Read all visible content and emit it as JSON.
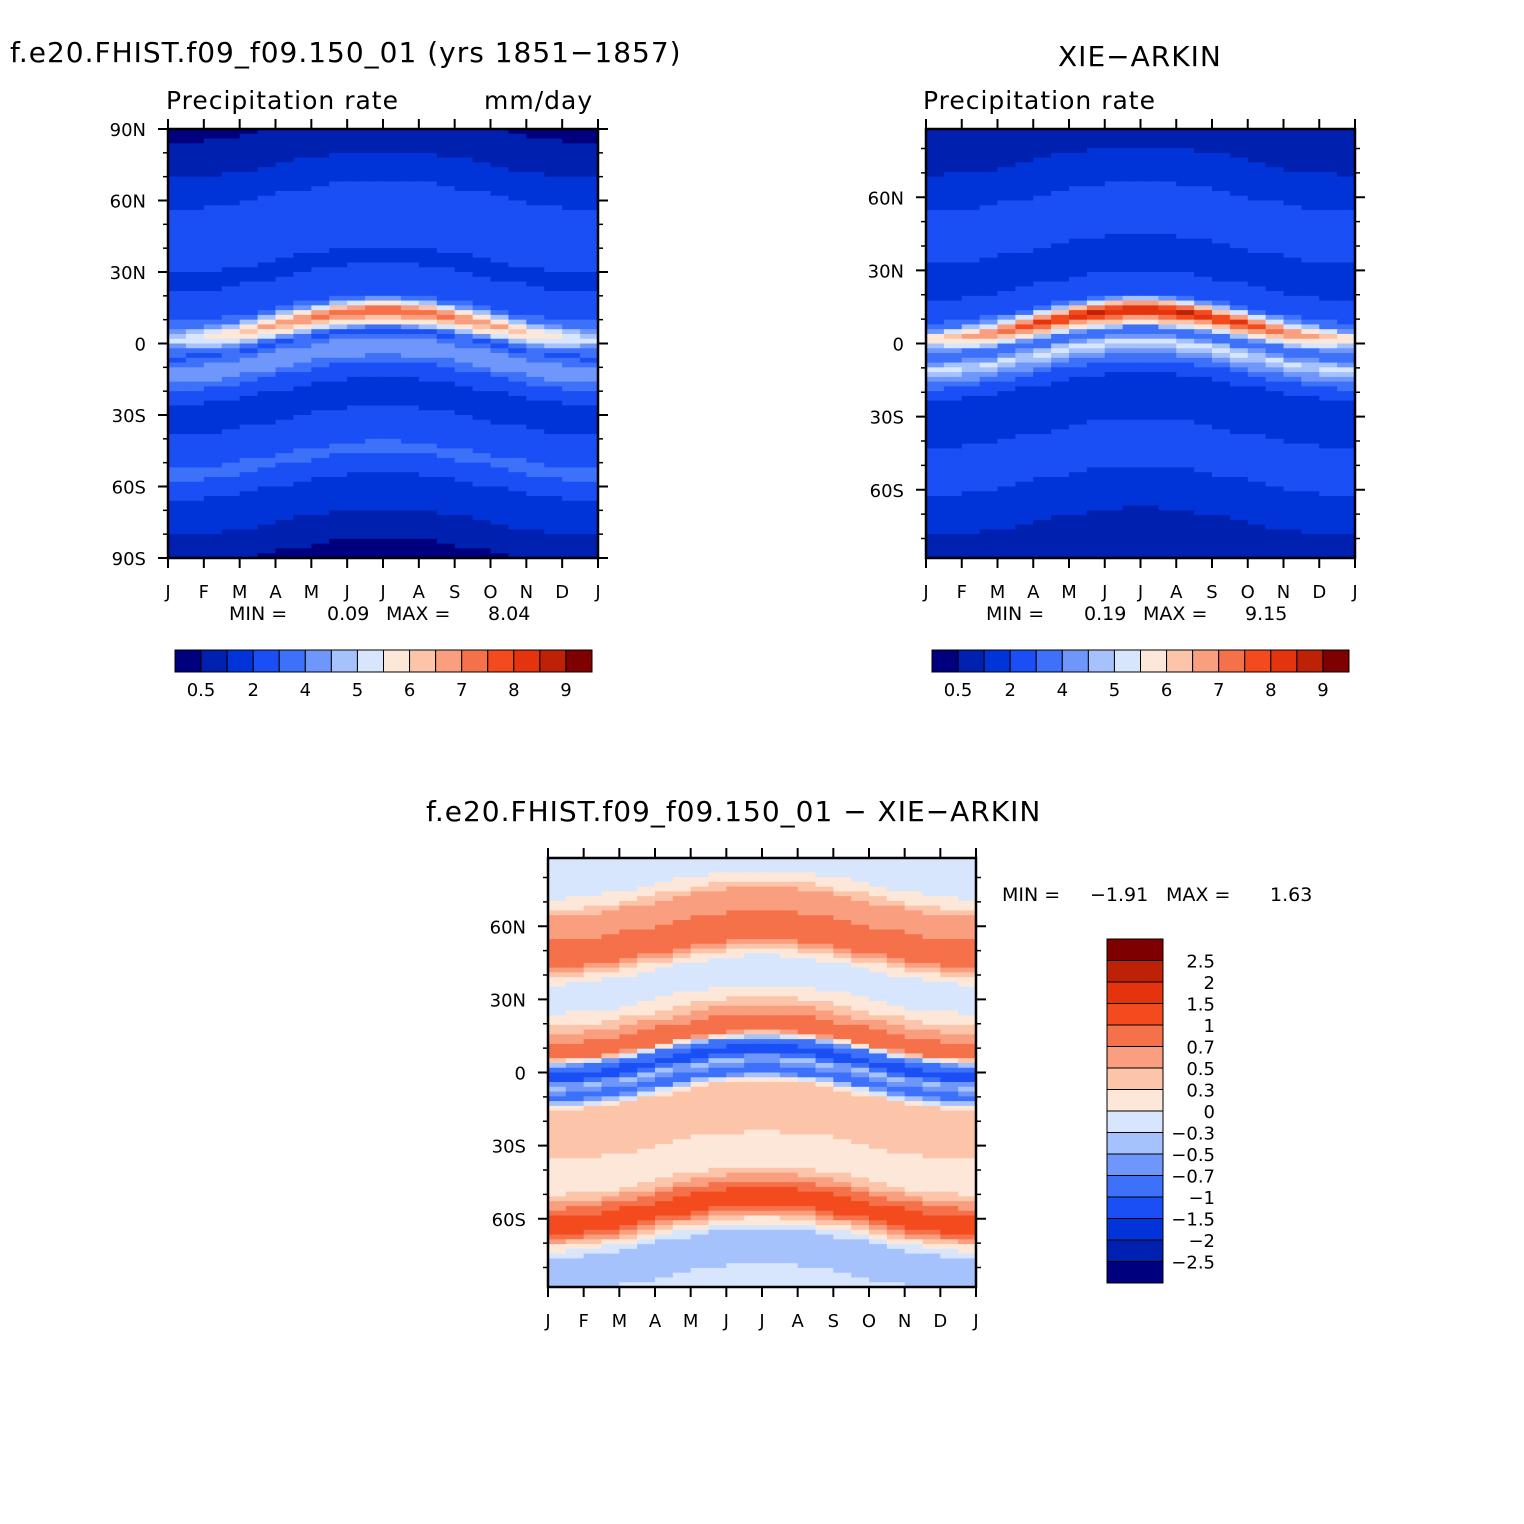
{
  "panels": [
    {
      "title": "f.e20.FHIST.f09_f09.150_01 (yrs 1851−1857)",
      "left_label": "Precipitation rate",
      "right_label": "mm/day",
      "min_label": "MIN =",
      "min_value": "0.09",
      "max_label": "MAX =",
      "max_value": "8.04"
    },
    {
      "title": "XIE−ARKIN",
      "left_label": "Precipitation rate",
      "right_label": "",
      "min_label": "MIN =",
      "min_value": "0.19",
      "max_label": "MAX =",
      "max_value": "9.15"
    },
    {
      "title": "f.e20.FHIST.f09_f09.150_01 − XIE−ARKIN",
      "left_label": "",
      "right_label": "",
      "min_label": "MIN =",
      "min_value": "−1.91",
      "max_label": "MAX =",
      "max_value": "1.63"
    }
  ],
  "colors": {
    "precip_scale": [
      "#00007F",
      "#0020B0",
      "#0034D8",
      "#1A4FF5",
      "#3D71FA",
      "#6F97FB",
      "#A6C2FC",
      "#D7E6FD",
      "#FDE7D8",
      "#FCC5AA",
      "#F99E7E",
      "#F5714A",
      "#F34A1E",
      "#E4340E",
      "#BD2207",
      "#7F0000"
    ],
    "diff_scale": [
      "#00007F",
      "#0020B0",
      "#0034D8",
      "#1A4FF5",
      "#3D71FA",
      "#6F97FB",
      "#A6C2FC",
      "#D7E6FD",
      "#FDE7D8",
      "#FCC5AA",
      "#F99E7E",
      "#F5714A",
      "#F34A1E",
      "#E4340E",
      "#BD2207",
      "#7F0000"
    ]
  },
  "chart_data": [
    {
      "type": "heatmap",
      "title": "f.e20.FHIST.f09_f09.150_01 (yrs 1851−1857)",
      "subtitle": "Precipitation rate",
      "units": "mm/day",
      "x_ticks": [
        "J",
        "F",
        "M",
        "A",
        "M",
        "J",
        "J",
        "A",
        "S",
        "O",
        "N",
        "D",
        "J"
      ],
      "y_ticks": [
        "90N",
        "60N",
        "30N",
        "0",
        "30S",
        "60S",
        "90S"
      ],
      "y_tick_values": [
        90,
        60,
        30,
        0,
        -30,
        -60,
        -90
      ],
      "ylim": [
        -90,
        90
      ],
      "colorbar_labels": [
        "0.5",
        "2",
        "4",
        "5",
        "6",
        "7",
        "8",
        "9"
      ],
      "min": 0.09,
      "max": 8.04,
      "profile_lat": [
        90,
        75,
        60,
        45,
        30,
        15,
        8,
        3,
        0,
        -5,
        -10,
        -15,
        -25,
        -40,
        -50,
        -60,
        -75,
        -90
      ],
      "profile_value": [
        0.5,
        1.0,
        2.2,
        2.4,
        1.8,
        3.0,
        7.0,
        5.0,
        2.5,
        4.5,
        4.2,
        2.6,
        1.4,
        2.6,
        3.2,
        2.0,
        1.0,
        0.4
      ]
    },
    {
      "type": "heatmap",
      "title": "XIE−ARKIN",
      "subtitle": "Precipitation rate",
      "x_ticks": [
        "J",
        "F",
        "M",
        "A",
        "M",
        "J",
        "J",
        "A",
        "S",
        "O",
        "N",
        "D",
        "J"
      ],
      "y_ticks": [
        "60N",
        "30N",
        "0",
        "30S",
        "60S"
      ],
      "y_tick_values": [
        60,
        30,
        0,
        -30,
        -60
      ],
      "ylim": [
        -88,
        88
      ],
      "colorbar_labels": [
        "0.5",
        "2",
        "4",
        "5",
        "6",
        "7",
        "8",
        "9"
      ],
      "min": 0.19,
      "max": 9.15,
      "profile_lat": [
        88,
        75,
        60,
        45,
        30,
        15,
        8,
        3,
        0,
        -5,
        -10,
        -15,
        -25,
        -40,
        -50,
        -60,
        -75,
        -88
      ],
      "profile_value": [
        0.5,
        1.0,
        2.0,
        2.3,
        1.6,
        2.6,
        8.0,
        5.4,
        3.2,
        5.2,
        4.0,
        2.3,
        1.2,
        2.2,
        2.5,
        1.7,
        0.9,
        0.6
      ]
    },
    {
      "type": "heatmap",
      "title": "f.e20.FHIST.f09_f09.150_01 − XIE−ARKIN",
      "x_ticks": [
        "J",
        "F",
        "M",
        "A",
        "M",
        "J",
        "J",
        "A",
        "S",
        "O",
        "N",
        "D",
        "J"
      ],
      "y_ticks": [
        "60N",
        "30N",
        "0",
        "30S",
        "60S"
      ],
      "y_tick_values": [
        60,
        30,
        0,
        -30,
        -60
      ],
      "ylim": [
        -88,
        88
      ],
      "colorbar_labels": [
        "2.5",
        "2",
        "1.5",
        "1",
        "0.7",
        "0.5",
        "0.3",
        "0",
        "−0.3",
        "−0.5",
        "−0.7",
        "−1",
        "−1.5",
        "−2",
        "−2.5"
      ],
      "min": -1.91,
      "max": 1.63,
      "profile_lat": [
        88,
        80,
        70,
        60,
        50,
        40,
        30,
        20,
        12,
        8,
        3,
        0,
        -5,
        -10,
        -20,
        -30,
        -40,
        -50,
        -55,
        -60,
        -70,
        -78,
        -88
      ],
      "profile_value": [
        0.0,
        -0.2,
        0.5,
        0.7,
        0.8,
        -0.2,
        0.0,
        0.6,
        1.0,
        -0.8,
        -1.2,
        -0.4,
        -0.9,
        0.4,
        0.4,
        0.3,
        0.0,
        0.7,
        1.2,
        1.0,
        -0.3,
        -0.5,
        -0.2
      ]
    }
  ]
}
